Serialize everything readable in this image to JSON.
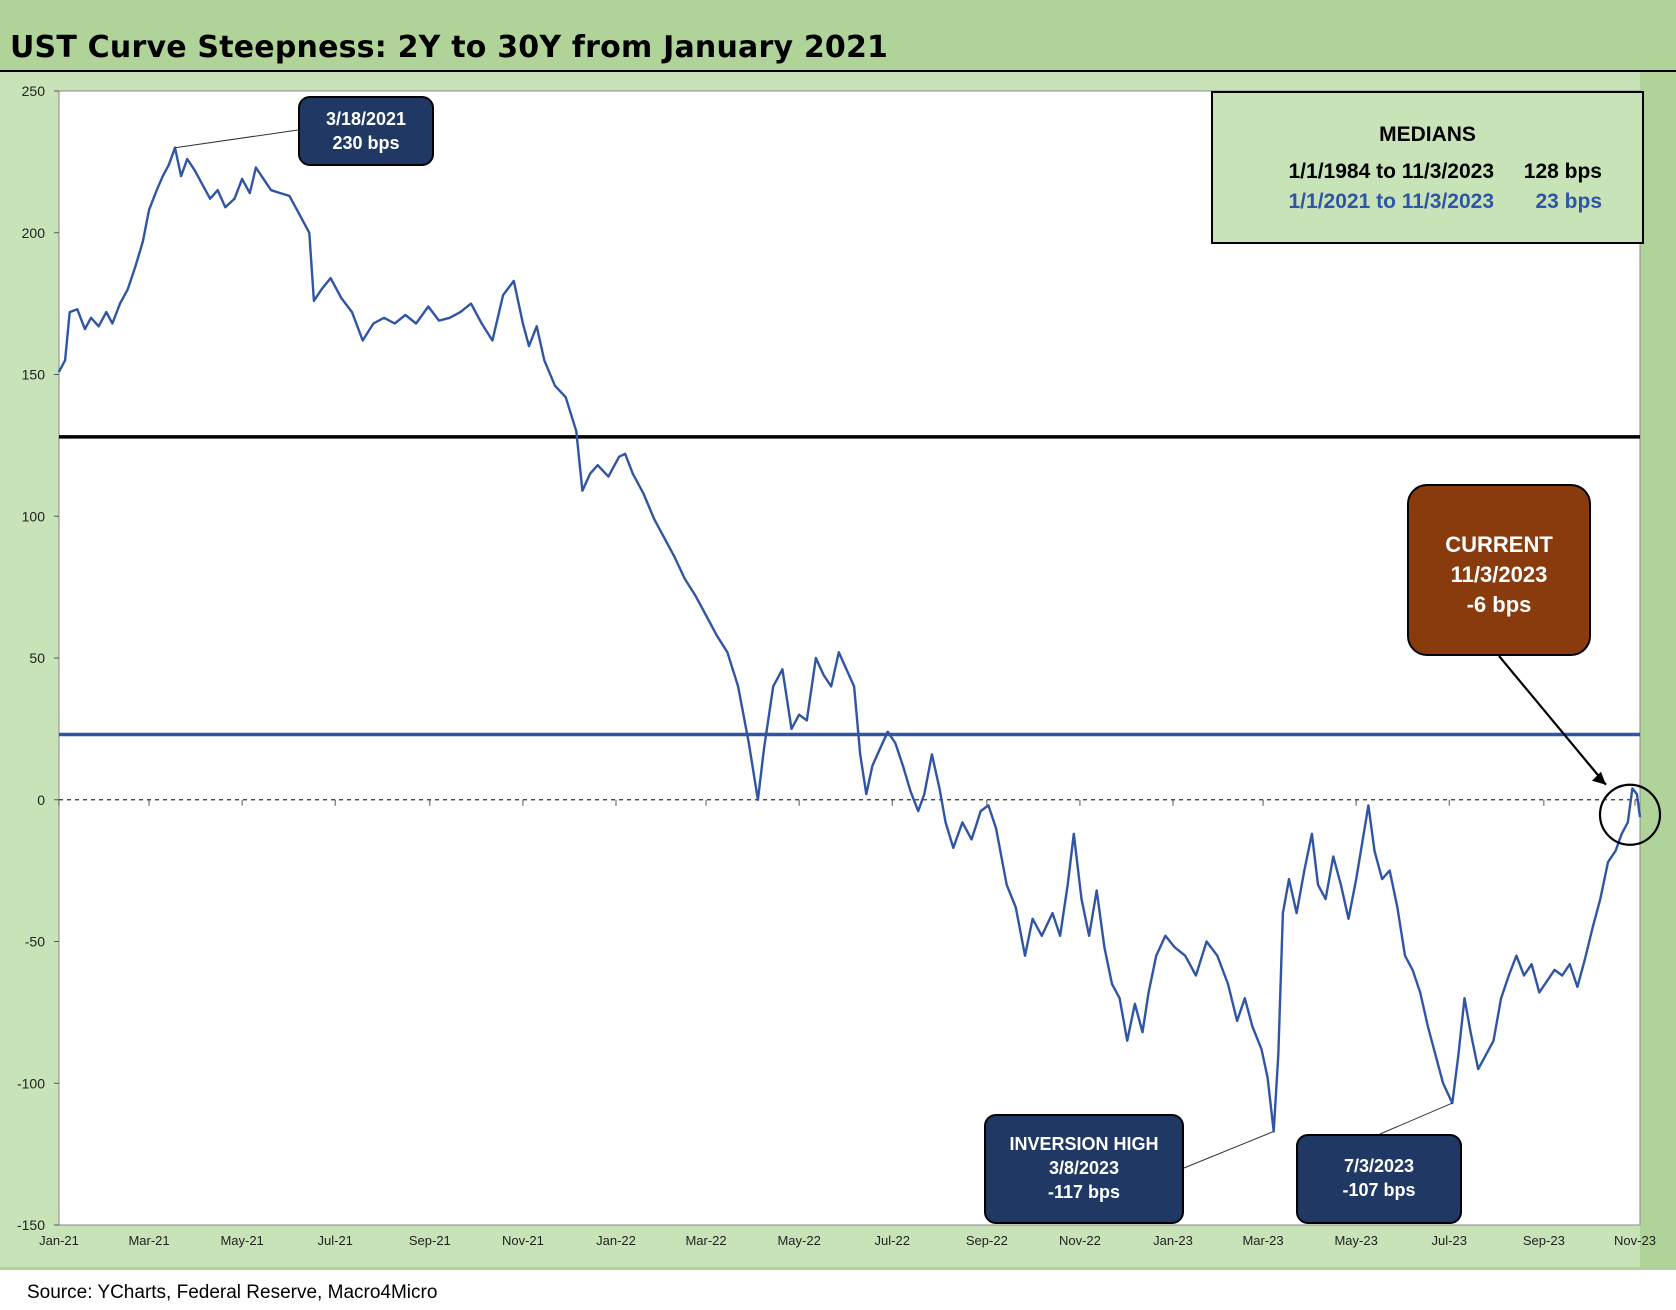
{
  "title": "UST Curve Steepness: 2Y to 30Y from January 2021",
  "source": "Source: YCharts, Federal Reserve, Macro4Micro",
  "colors": {
    "frame": "#b0d39a",
    "plot_bg": "#c9e3b8",
    "series_line": "#2f55a4",
    "median_long_line": "#000000",
    "median_recent_line": "#2f55a4",
    "callout_navy": "#1f3864",
    "current_box": "#8a3b0e"
  },
  "medians": {
    "title": "MEDIANS",
    "rows": [
      {
        "range": "1/1/1984 to 11/3/2023",
        "value": "128 bps",
        "color": "#000000"
      },
      {
        "range": "1/1/2021 to 11/3/2023",
        "value": "23 bps",
        "color": "#2f55a4"
      }
    ]
  },
  "callouts": {
    "peak": {
      "lines": [
        "3/18/2021",
        "230 bps"
      ]
    },
    "inversion_high": {
      "lines": [
        "INVERSION HIGH",
        "3/8/2023",
        "-117 bps"
      ]
    },
    "july": {
      "lines": [
        "7/3/2023",
        "-107 bps"
      ]
    },
    "current": {
      "lines": [
        "CURRENT",
        "11/3/2023",
        "-6 bps"
      ]
    }
  },
  "chart_data": {
    "type": "line",
    "title": "UST Curve Steepness: 2Y to 30Y from January 2021",
    "xlabel": "",
    "ylabel": "",
    "ylim": [
      -150,
      250
    ],
    "yticks": [
      250,
      200,
      150,
      100,
      50,
      0,
      -50,
      -100,
      -150
    ],
    "x_tick_labels": [
      "Jan-21",
      "Mar-21",
      "May-21",
      "Jul-21",
      "Sep-21",
      "Nov-21",
      "Jan-22",
      "Mar-22",
      "May-22",
      "Jul-22",
      "Sep-22",
      "Nov-22",
      "Jan-23",
      "Mar-23",
      "May-23",
      "Jul-23",
      "Sep-23",
      "Nov-23"
    ],
    "x_range": [
      "2021-01-01",
      "2023-11-03"
    ],
    "zero_line": {
      "value": 0,
      "style": "dashed"
    },
    "horizontal_lines": [
      {
        "value": 128,
        "label": "1/1/1984 to 11/3/2023 median"
      },
      {
        "value": 23,
        "label": "1/1/2021 to 11/3/2023 median"
      }
    ],
    "series": [
      {
        "points": [
          [
            "2021-01-01",
            151
          ],
          [
            "2021-01-05",
            155
          ],
          [
            "2021-01-08",
            172
          ],
          [
            "2021-01-13",
            173
          ],
          [
            "2021-01-18",
            166
          ],
          [
            "2021-01-22",
            170
          ],
          [
            "2021-01-27",
            167
          ],
          [
            "2021-02-01",
            172
          ],
          [
            "2021-02-05",
            168
          ],
          [
            "2021-02-10",
            175
          ],
          [
            "2021-02-15",
            180
          ],
          [
            "2021-02-20",
            188
          ],
          [
            "2021-02-25",
            197
          ],
          [
            "2021-03-01",
            208
          ],
          [
            "2021-03-06",
            215
          ],
          [
            "2021-03-10",
            220
          ],
          [
            "2021-03-14",
            224
          ],
          [
            "2021-03-18",
            230
          ],
          [
            "2021-03-22",
            220
          ],
          [
            "2021-03-26",
            226
          ],
          [
            "2021-03-31",
            222
          ],
          [
            "2021-04-05",
            217
          ],
          [
            "2021-04-10",
            212
          ],
          [
            "2021-04-15",
            215
          ],
          [
            "2021-04-20",
            209
          ],
          [
            "2021-04-26",
            212
          ],
          [
            "2021-05-01",
            219
          ],
          [
            "2021-05-06",
            214
          ],
          [
            "2021-05-10",
            223
          ],
          [
            "2021-05-15",
            219
          ],
          [
            "2021-05-20",
            215
          ],
          [
            "2021-05-26",
            214
          ],
          [
            "2021-06-01",
            213
          ],
          [
            "2021-06-06",
            208
          ],
          [
            "2021-06-10",
            204
          ],
          [
            "2021-06-14",
            200
          ],
          [
            "2021-06-17",
            176
          ],
          [
            "2021-06-22",
            180
          ],
          [
            "2021-06-28",
            184
          ],
          [
            "2021-07-05",
            177
          ],
          [
            "2021-07-12",
            172
          ],
          [
            "2021-07-19",
            162
          ],
          [
            "2021-07-26",
            168
          ],
          [
            "2021-08-02",
            170
          ],
          [
            "2021-08-09",
            168
          ],
          [
            "2021-08-16",
            171
          ],
          [
            "2021-08-23",
            168
          ],
          [
            "2021-08-31",
            174
          ],
          [
            "2021-09-07",
            169
          ],
          [
            "2021-09-14",
            170
          ],
          [
            "2021-09-21",
            172
          ],
          [
            "2021-09-28",
            175
          ],
          [
            "2021-10-05",
            168
          ],
          [
            "2021-10-12",
            162
          ],
          [
            "2021-10-19",
            178
          ],
          [
            "2021-10-26",
            183
          ],
          [
            "2021-11-01",
            168
          ],
          [
            "2021-11-05",
            160
          ],
          [
            "2021-11-10",
            167
          ],
          [
            "2021-11-15",
            155
          ],
          [
            "2021-11-22",
            146
          ],
          [
            "2021-11-29",
            142
          ],
          [
            "2021-12-06",
            130
          ],
          [
            "2021-12-10",
            109
          ],
          [
            "2021-12-15",
            115
          ],
          [
            "2021-12-20",
            118
          ],
          [
            "2021-12-27",
            114
          ],
          [
            "2022-01-03",
            121
          ],
          [
            "2022-01-07",
            122
          ],
          [
            "2022-01-12",
            115
          ],
          [
            "2022-01-19",
            108
          ],
          [
            "2022-01-26",
            99
          ],
          [
            "2022-02-01",
            93
          ],
          [
            "2022-02-08",
            86
          ],
          [
            "2022-02-15",
            78
          ],
          [
            "2022-02-22",
            72
          ],
          [
            "2022-03-01",
            65
          ],
          [
            "2022-03-08",
            58
          ],
          [
            "2022-03-15",
            52
          ],
          [
            "2022-03-22",
            40
          ],
          [
            "2022-03-29",
            20
          ],
          [
            "2022-04-04",
            0
          ],
          [
            "2022-04-08",
            18
          ],
          [
            "2022-04-14",
            40
          ],
          [
            "2022-04-20",
            46
          ],
          [
            "2022-04-26",
            25
          ],
          [
            "2022-05-01",
            30
          ],
          [
            "2022-05-06",
            28
          ],
          [
            "2022-05-12",
            50
          ],
          [
            "2022-05-17",
            44
          ],
          [
            "2022-05-22",
            40
          ],
          [
            "2022-05-27",
            52
          ],
          [
            "2022-06-01",
            46
          ],
          [
            "2022-06-06",
            40
          ],
          [
            "2022-06-10",
            16
          ],
          [
            "2022-06-14",
            2
          ],
          [
            "2022-06-18",
            12
          ],
          [
            "2022-06-23",
            18
          ],
          [
            "2022-06-28",
            24
          ],
          [
            "2022-07-03",
            20
          ],
          [
            "2022-07-08",
            12
          ],
          [
            "2022-07-13",
            3
          ],
          [
            "2022-07-18",
            -4
          ],
          [
            "2022-07-22",
            2
          ],
          [
            "2022-07-27",
            16
          ],
          [
            "2022-08-01",
            4
          ],
          [
            "2022-08-05",
            -8
          ],
          [
            "2022-08-10",
            -17
          ],
          [
            "2022-08-16",
            -8
          ],
          [
            "2022-08-22",
            -14
          ],
          [
            "2022-08-28",
            -4
          ],
          [
            "2022-09-02",
            -2
          ],
          [
            "2022-09-07",
            -10
          ],
          [
            "2022-09-14",
            -30
          ],
          [
            "2022-09-20",
            -38
          ],
          [
            "2022-09-26",
            -55
          ],
          [
            "2022-10-01",
            -42
          ],
          [
            "2022-10-07",
            -48
          ],
          [
            "2022-10-14",
            -40
          ],
          [
            "2022-10-19",
            -48
          ],
          [
            "2022-10-24",
            -30
          ],
          [
            "2022-10-28",
            -12
          ],
          [
            "2022-11-02",
            -35
          ],
          [
            "2022-11-07",
            -48
          ],
          [
            "2022-11-12",
            -32
          ],
          [
            "2022-11-17",
            -52
          ],
          [
            "2022-11-22",
            -65
          ],
          [
            "2022-11-27",
            -70
          ],
          [
            "2022-12-02",
            -85
          ],
          [
            "2022-12-07",
            -72
          ],
          [
            "2022-12-12",
            -82
          ],
          [
            "2022-12-16",
            -68
          ],
          [
            "2022-12-21",
            -55
          ],
          [
            "2022-12-27",
            -48
          ],
          [
            "2023-01-02",
            -52
          ],
          [
            "2023-01-09",
            -55
          ],
          [
            "2023-01-16",
            -62
          ],
          [
            "2023-01-23",
            -50
          ],
          [
            "2023-01-30",
            -55
          ],
          [
            "2023-02-06",
            -65
          ],
          [
            "2023-02-12",
            -78
          ],
          [
            "2023-02-17",
            -70
          ],
          [
            "2023-02-22",
            -80
          ],
          [
            "2023-02-28",
            -88
          ],
          [
            "2023-03-04",
            -98
          ],
          [
            "2023-03-08",
            -117
          ],
          [
            "2023-03-11",
            -90
          ],
          [
            "2023-03-14",
            -40
          ],
          [
            "2023-03-18",
            -28
          ],
          [
            "2023-03-23",
            -40
          ],
          [
            "2023-03-28",
            -25
          ],
          [
            "2023-04-02",
            -12
          ],
          [
            "2023-04-06",
            -30
          ],
          [
            "2023-04-11",
            -35
          ],
          [
            "2023-04-16",
            -20
          ],
          [
            "2023-04-21",
            -30
          ],
          [
            "2023-04-26",
            -42
          ],
          [
            "2023-05-01",
            -28
          ],
          [
            "2023-05-05",
            -15
          ],
          [
            "2023-05-09",
            -2
          ],
          [
            "2023-05-13",
            -18
          ],
          [
            "2023-05-18",
            -28
          ],
          [
            "2023-05-23",
            -25
          ],
          [
            "2023-05-28",
            -38
          ],
          [
            "2023-06-02",
            -55
          ],
          [
            "2023-06-07",
            -60
          ],
          [
            "2023-06-12",
            -68
          ],
          [
            "2023-06-17",
            -80
          ],
          [
            "2023-06-22",
            -90
          ],
          [
            "2023-06-27",
            -100
          ],
          [
            "2023-07-03",
            -107
          ],
          [
            "2023-07-07",
            -90
          ],
          [
            "2023-07-11",
            -70
          ],
          [
            "2023-07-15",
            -82
          ],
          [
            "2023-07-20",
            -95
          ],
          [
            "2023-07-25",
            -90
          ],
          [
            "2023-07-30",
            -85
          ],
          [
            "2023-08-04",
            -70
          ],
          [
            "2023-08-09",
            -62
          ],
          [
            "2023-08-14",
            -55
          ],
          [
            "2023-08-19",
            -62
          ],
          [
            "2023-08-24",
            -58
          ],
          [
            "2023-08-29",
            -68
          ],
          [
            "2023-09-03",
            -64
          ],
          [
            "2023-09-08",
            -60
          ],
          [
            "2023-09-13",
            -62
          ],
          [
            "2023-09-18",
            -58
          ],
          [
            "2023-09-23",
            -66
          ],
          [
            "2023-09-28",
            -56
          ],
          [
            "2023-10-03",
            -45
          ],
          [
            "2023-10-08",
            -35
          ],
          [
            "2023-10-13",
            -22
          ],
          [
            "2023-10-18",
            -18
          ],
          [
            "2023-10-22",
            -12
          ],
          [
            "2023-10-26",
            -8
          ],
          [
            "2023-10-29",
            4
          ],
          [
            "2023-11-01",
            2
          ],
          [
            "2023-11-03",
            -6
          ]
        ]
      }
    ]
  }
}
